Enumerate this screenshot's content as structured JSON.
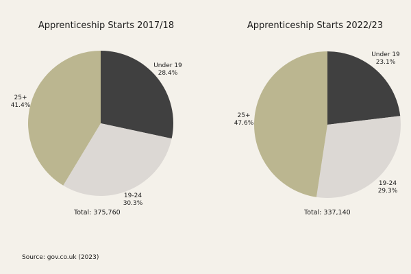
{
  "colors": {
    "background": "#f4f1ea",
    "under19": "#404040",
    "age19_24": "#dcd8d4",
    "age25plus": "#bbb690"
  },
  "chart_data": [
    {
      "type": "pie",
      "title": "Apprenticeship Starts 2017/18",
      "slices": [
        {
          "name": "Under 19",
          "value": 28.4,
          "label": "28.4%"
        },
        {
          "name": "19-24",
          "value": 30.3,
          "label": "30.3%"
        },
        {
          "name": "25+",
          "value": 41.4,
          "label": "41.4%"
        }
      ],
      "total_text": "Total: 375,760"
    },
    {
      "type": "pie",
      "title": "Apprenticeship Starts 2022/23",
      "slices": [
        {
          "name": "Under 19",
          "value": 23.1,
          "label": "23.1%"
        },
        {
          "name": "19-24",
          "value": 29.3,
          "label": "29.3%"
        },
        {
          "name": "25+",
          "value": 47.6,
          "label": "47.6%"
        }
      ],
      "total_text": "Total: 337,140"
    }
  ],
  "source": "Source: gov.co.uk (2023)"
}
